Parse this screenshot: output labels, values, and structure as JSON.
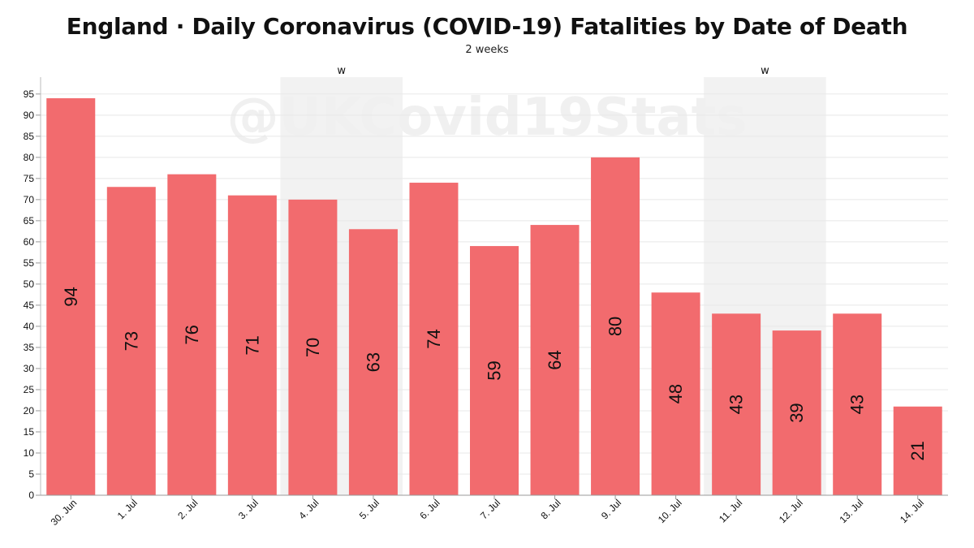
{
  "header": {
    "title": "England · Daily Coronavirus (COVID-19) Fatalities by Date of Death",
    "subtitle": "2 weeks"
  },
  "watermark": "@UKCovid19Stats",
  "colors": {
    "bar": "#f26b6e",
    "weekend_band": "#f2f2f2",
    "grid": "#e8e8e8",
    "watermark": "#f0f0f0",
    "text": "#111111"
  },
  "chart_data": {
    "type": "bar",
    "categories": [
      "30. Jun",
      "1. Jul",
      "2. Jul",
      "3. Jul",
      "4. Jul",
      "5. Jul",
      "6. Jul",
      "7. Jul",
      "8. Jul",
      "9. Jul",
      "10. Jul",
      "11. Jul",
      "12. Jul",
      "13. Jul",
      "14. Jul"
    ],
    "values": [
      94,
      73,
      76,
      71,
      70,
      63,
      74,
      59,
      64,
      80,
      48,
      43,
      39,
      43,
      21
    ],
    "ylim": [
      0,
      99
    ],
    "yticks": [
      0,
      5,
      10,
      15,
      20,
      25,
      30,
      35,
      40,
      45,
      50,
      55,
      60,
      65,
      70,
      75,
      80,
      85,
      90,
      95
    ],
    "grid": true,
    "data_labels": "inside-bar-rotated",
    "weekend_bands": [
      {
        "from": "4. Jul",
        "to": "5. Jul",
        "label": "w"
      },
      {
        "from": "11. Jul",
        "to": "12. Jul",
        "label": "w"
      }
    ]
  }
}
